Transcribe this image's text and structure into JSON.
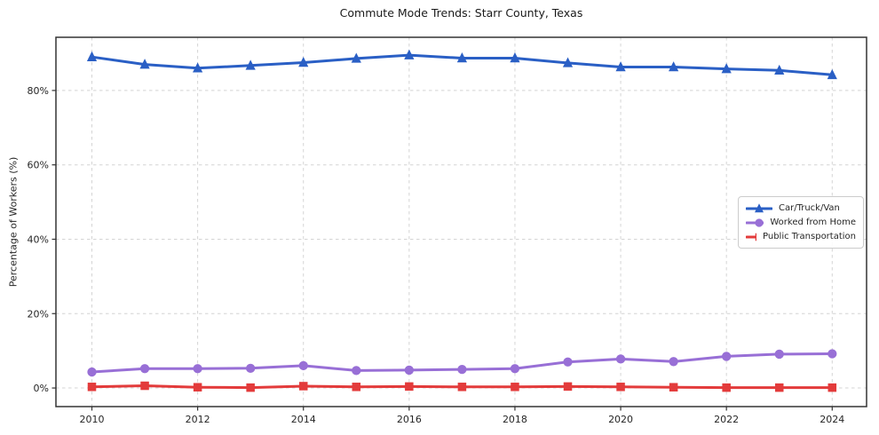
{
  "chart_data": {
    "type": "line",
    "title": "Commute Mode Trends: Starr County, Texas",
    "xlabel": "",
    "ylabel": "Percentage of Workers (%)",
    "x": [
      2010,
      2011,
      2012,
      2013,
      2014,
      2015,
      2016,
      2017,
      2018,
      2019,
      2020,
      2021,
      2022,
      2023,
      2024
    ],
    "series": [
      {
        "name": "Car/Truck/Van",
        "color": "#2a5fc5",
        "marker": "triangle",
        "values": [
          89.0,
          87.0,
          86.0,
          86.7,
          87.5,
          88.6,
          89.5,
          88.7,
          88.7,
          87.4,
          86.3,
          86.3,
          85.8,
          85.4,
          84.2
        ]
      },
      {
        "name": "Worked from Home",
        "color": "#986fd6",
        "marker": "circle",
        "values": [
          4.3,
          5.2,
          5.2,
          5.3,
          6.0,
          4.7,
          4.8,
          5.0,
          5.2,
          7.0,
          7.8,
          7.1,
          8.5,
          9.1,
          9.2
        ]
      },
      {
        "name": "Public Transportation",
        "color": "#e33b3b",
        "marker": "square",
        "values": [
          0.3,
          0.6,
          0.2,
          0.1,
          0.5,
          0.3,
          0.4,
          0.3,
          0.3,
          0.4,
          0.3,
          0.2,
          0.1,
          0.1,
          0.1
        ]
      }
    ],
    "xlim": [
      2009.32,
      2024.65
    ],
    "ylim": [
      -5,
      94.3
    ],
    "x_ticks": [
      2010,
      2012,
      2014,
      2016,
      2018,
      2020,
      2022,
      2024
    ],
    "x_tick_labels": [
      "2010",
      "2012",
      "2014",
      "2016",
      "2018",
      "2020",
      "2022",
      "2024"
    ],
    "y_ticks": [
      0,
      20,
      40,
      60,
      80
    ],
    "y_tick_labels": [
      "0%",
      "20%",
      "40%",
      "60%",
      "80%"
    ],
    "grid": true,
    "grid_color": "#d4d4d4",
    "axis_color": "#333333",
    "text_color": "#262626",
    "legend_position": "center-right"
  }
}
